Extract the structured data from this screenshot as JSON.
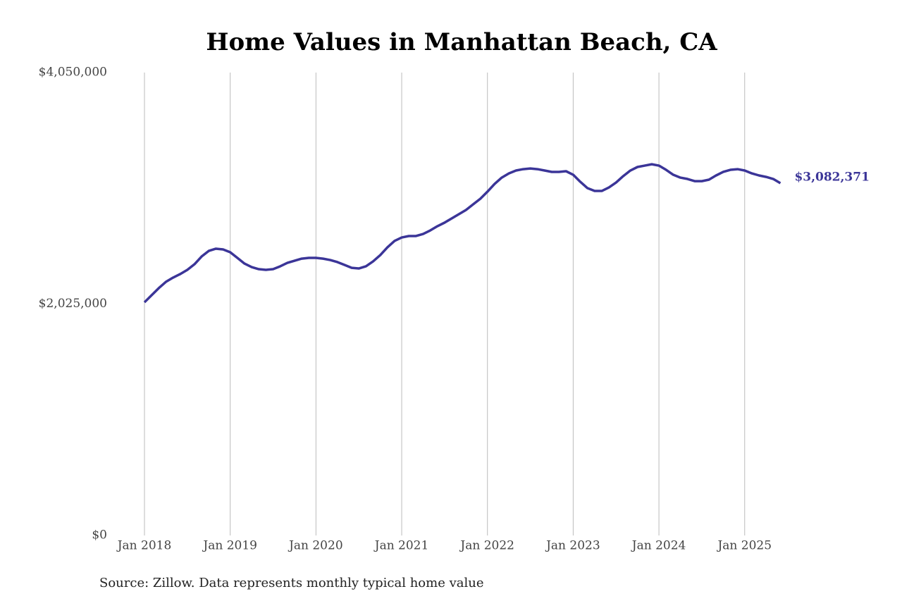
{
  "chart_data": {
    "type": "line",
    "title": "Home Values in Manhattan Beach, CA",
    "source": "Source: Zillow. Data represents monthly typical home value",
    "x": [
      "Jan 2018",
      "Feb 2018",
      "Mar 2018",
      "Apr 2018",
      "May 2018",
      "Jun 2018",
      "Jul 2018",
      "Aug 2018",
      "Sep 2018",
      "Oct 2018",
      "Nov 2018",
      "Dec 2018",
      "Jan 2019",
      "Feb 2019",
      "Mar 2019",
      "Apr 2019",
      "May 2019",
      "Jun 2019",
      "Jul 2019",
      "Aug 2019",
      "Sep 2019",
      "Oct 2019",
      "Nov 2019",
      "Dec 2019",
      "Jan 2020",
      "Feb 2020",
      "Mar 2020",
      "Apr 2020",
      "May 2020",
      "Jun 2020",
      "Jul 2020",
      "Aug 2020",
      "Sep 2020",
      "Oct 2020",
      "Nov 2020",
      "Dec 2020",
      "Jan 2021",
      "Feb 2021",
      "Mar 2021",
      "Apr 2021",
      "May 2021",
      "Jun 2021",
      "Jul 2021",
      "Aug 2021",
      "Sep 2021",
      "Oct 2021",
      "Nov 2021",
      "Dec 2021",
      "Jan 2022",
      "Feb 2022",
      "Mar 2022",
      "Apr 2022",
      "May 2022",
      "Jun 2022",
      "Jul 2022",
      "Aug 2022",
      "Sep 2022",
      "Oct 2022",
      "Nov 2022",
      "Dec 2022",
      "Jan 2023",
      "Feb 2023",
      "Mar 2023",
      "Apr 2023",
      "May 2023",
      "Jun 2023",
      "Jul 2023",
      "Aug 2023",
      "Sep 2023",
      "Oct 2023",
      "Nov 2023",
      "Dec 2023",
      "Jan 2024",
      "Feb 2024",
      "Mar 2024",
      "Apr 2024",
      "May 2024",
      "Jun 2024",
      "Jul 2024",
      "Aug 2024",
      "Sep 2024",
      "Oct 2024",
      "Nov 2024",
      "Dec 2024",
      "Jan 2025",
      "Feb 2025",
      "Mar 2025",
      "Apr 2025",
      "May 2025",
      "Jun 2025"
    ],
    "values": [
      2040000,
      2102000,
      2164000,
      2219000,
      2256000,
      2287000,
      2324000,
      2373000,
      2441000,
      2490000,
      2509000,
      2503000,
      2478000,
      2429000,
      2379000,
      2348000,
      2330000,
      2324000,
      2330000,
      2355000,
      2385000,
      2404000,
      2422000,
      2429000,
      2429000,
      2422000,
      2410000,
      2392000,
      2367000,
      2342000,
      2336000,
      2355000,
      2398000,
      2453000,
      2521000,
      2577000,
      2607000,
      2620000,
      2620000,
      2638000,
      2669000,
      2706000,
      2737000,
      2774000,
      2811000,
      2848000,
      2897000,
      2946000,
      3008000,
      3076000,
      3131000,
      3168000,
      3193000,
      3205000,
      3211000,
      3205000,
      3193000,
      3181000,
      3181000,
      3187000,
      3156000,
      3094000,
      3039000,
      3014000,
      3014000,
      3045000,
      3088000,
      3144000,
      3193000,
      3224000,
      3236000,
      3248000,
      3236000,
      3199000,
      3156000,
      3131000,
      3119000,
      3100000,
      3100000,
      3113000,
      3150000,
      3181000,
      3199000,
      3205000,
      3193000,
      3168000,
      3150000,
      3137000,
      3119000,
      3082371
    ],
    "value_labels": [
      null,
      null,
      null,
      null,
      null,
      null,
      null,
      null,
      null,
      null,
      null,
      null,
      null,
      null,
      null,
      null,
      null,
      null,
      null,
      null,
      null,
      null,
      null,
      null,
      null,
      null,
      null,
      null,
      null,
      null,
      null,
      null,
      null,
      null,
      null,
      null,
      null,
      null,
      null,
      null,
      null,
      null,
      null,
      null,
      null,
      null,
      null,
      null,
      null,
      null,
      null,
      null,
      null,
      null,
      null,
      null,
      null,
      null,
      null,
      null,
      null,
      null,
      null,
      null,
      null,
      null,
      null,
      null,
      null,
      null,
      null,
      null,
      null,
      null,
      null,
      null,
      null,
      null,
      null,
      null,
      null,
      null,
      null,
      null,
      null,
      null,
      null,
      null,
      null,
      "$3,082,371"
    ],
    "color": "#3b3598",
    "xticks": [
      "Jan 2018",
      "Jan 2019",
      "Jan 2020",
      "Jan 2021",
      "Jan 2022",
      "Jan 2023",
      "Jan 2024",
      "Jan 2025"
    ],
    "ylim": [
      0,
      4050000
    ],
    "yticks": [
      {
        "value": 0,
        "label": "$0"
      },
      {
        "value": 2025000,
        "label": "$2,025,000"
      },
      {
        "value": 4050000,
        "label": "$4,050,000"
      }
    ],
    "grid": true
  }
}
